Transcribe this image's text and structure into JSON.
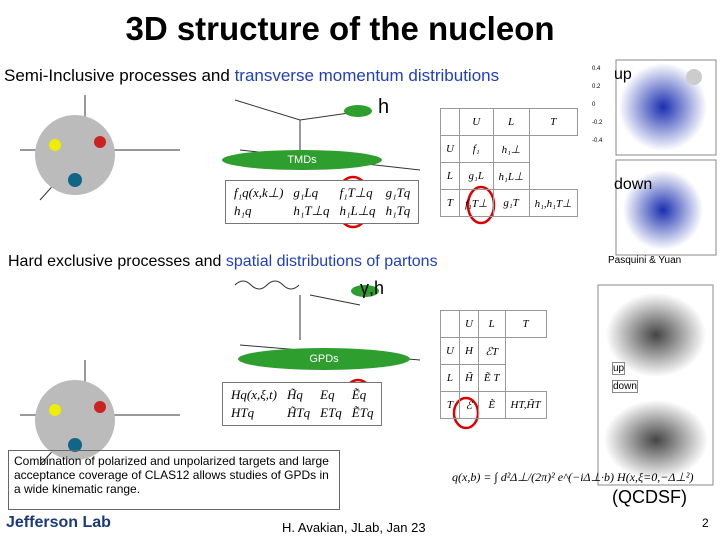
{
  "title": "3D structure of the nucleon",
  "sidis": {
    "heading_prefix": "Semi-Inclusive processes and",
    "heading_highlight": "transverse momentum distributions",
    "hadron": "h",
    "blob": "TMDs",
    "functions": [
      "f₁q(x,k⊥)",
      "g₁Lq",
      "f₁T⊥q",
      "g₁Tq",
      "h₁q",
      "h₁T⊥q",
      "h₁L⊥q",
      "h₁Tq"
    ],
    "table": {
      "header": [
        "U",
        "L",
        "T"
      ],
      "rows": [
        [
          "U",
          "f₁",
          "h₁⊥"
        ],
        [
          "L",
          "g₁L",
          "h₁L⊥"
        ],
        [
          "T",
          "f₁T⊥",
          "g₁T",
          "h₁,h₁T⊥"
        ]
      ]
    }
  },
  "exclusive": {
    "heading_prefix": "Hard exclusive processes and",
    "heading_highlight": "spatial distributions of partons",
    "probe": "γ,h",
    "blob": "GPDs",
    "functions": [
      "Hq(x,ξ,t)",
      "H̃q",
      "Eq",
      "Ẽq",
      "HTq",
      "H̃Tq",
      "ETq",
      "ẼTq"
    ],
    "table": {
      "header": [
        "U",
        "L",
        "T"
      ],
      "rows": [
        [
          "U",
          "H",
          "ℰT"
        ],
        [
          "L",
          "H̃",
          "Ẽ T"
        ],
        [
          "T",
          "ℰ",
          "Ẽ",
          "HT,H̃T"
        ]
      ]
    }
  },
  "plots": {
    "up": "up",
    "down": "down",
    "credit": "Pasquini & Yuan",
    "yticks": [
      "0.4",
      "0.2",
      "0",
      "-0.2",
      "-0.4"
    ],
    "lattice_up": "up",
    "lattice_down": "down",
    "lattice_credit": "(QCDSF)"
  },
  "note": "Combination of polarized and unpolarized targets and large acceptance coverage of CLAS12 allows studies of GPDs in a wide kinematic range.",
  "formula": "q(x,b) = ∫ d²Δ⊥/(2π)² e^(−iΔ⊥·b) H(x,ξ=0,−Δ⊥²)",
  "footer": {
    "logo": "Jefferson Lab",
    "author": "H. Avakian,  JLab, Jan 23",
    "page": "2"
  }
}
